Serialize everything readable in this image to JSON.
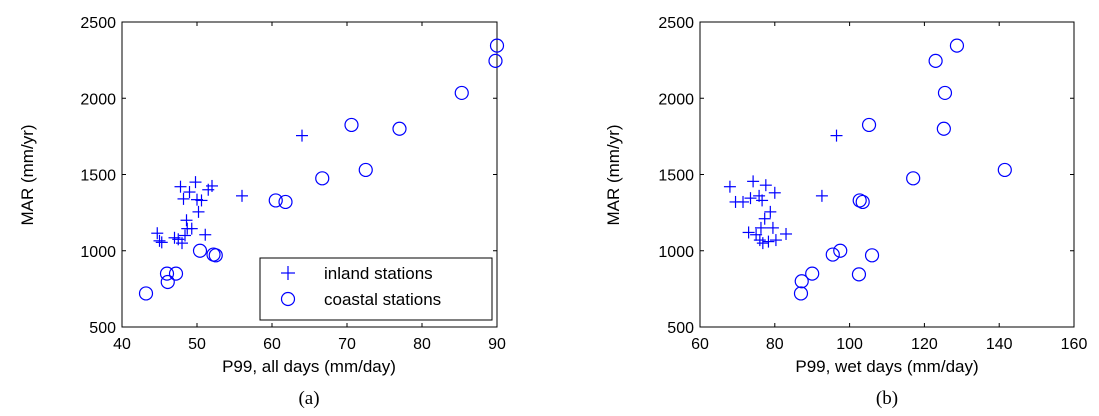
{
  "figure": {
    "marker_color": "#0000ff",
    "legend": {
      "inland": "inland stations",
      "coastal": "coastal stations"
    }
  },
  "chart_data": [
    {
      "type": "scatter",
      "caption": "(a)",
      "xlabel": "P99, all days (mm/day)",
      "ylabel": "MAR (mm/yr)",
      "xlim": [
        40,
        90
      ],
      "ylim": [
        500,
        2500
      ],
      "xticks": [
        "40",
        "50",
        "60",
        "70",
        "80",
        "90"
      ],
      "yticks": [
        "500",
        "1000",
        "1500",
        "2000",
        "2500"
      ],
      "legend_position": "bottom-right",
      "series": [
        {
          "name": "inland stations",
          "marker": "plus",
          "points": [
            [
              44.7,
              1115
            ],
            [
              45,
              1065
            ],
            [
              45.3,
              1055
            ],
            [
              47,
              1085
            ],
            [
              47.5,
              1075
            ],
            [
              47.8,
              1420
            ],
            [
              48,
              1050
            ],
            [
              48.2,
              1340
            ],
            [
              48.4,
              1100
            ],
            [
              48.6,
              1200
            ],
            [
              48.7,
              1145
            ],
            [
              49,
              1385
            ],
            [
              49.3,
              1145
            ],
            [
              49.8,
              1450
            ],
            [
              50,
              1335
            ],
            [
              50.2,
              1255
            ],
            [
              50.6,
              1330
            ],
            [
              51.1,
              1105
            ],
            [
              51.5,
              1400
            ],
            [
              52,
              1425
            ],
            [
              56,
              1360
            ],
            [
              64,
              1755
            ]
          ]
        },
        {
          "name": "coastal stations",
          "marker": "circle",
          "points": [
            [
              43.2,
              720
            ],
            [
              46,
              850
            ],
            [
              46.1,
              795
            ],
            [
              47.2,
              850
            ],
            [
              50.4,
              1000
            ],
            [
              52.2,
              975
            ],
            [
              52.5,
              970
            ],
            [
              60.5,
              1330
            ],
            [
              61.8,
              1320
            ],
            [
              66.7,
              1475
            ],
            [
              70.6,
              1825
            ],
            [
              72.5,
              1530
            ],
            [
              77,
              1800
            ],
            [
              85.3,
              2035
            ],
            [
              89.8,
              2245
            ],
            [
              90,
              2345
            ]
          ]
        }
      ]
    },
    {
      "type": "scatter",
      "caption": "(b)",
      "xlabel": "P99, wet days (mm/day)",
      "ylabel": "MAR (mm/yr)",
      "xlim": [
        60,
        160
      ],
      "ylim": [
        500,
        2500
      ],
      "xticks": [
        "60",
        "80",
        "100",
        "120",
        "140",
        "160"
      ],
      "yticks": [
        "500",
        "1000",
        "1500",
        "2000",
        "2500"
      ],
      "series": [
        {
          "name": "inland stations",
          "marker": "plus",
          "points": [
            [
              68,
              1420
            ],
            [
              69.5,
              1320
            ],
            [
              71.5,
              1320
            ],
            [
              73,
              1120
            ],
            [
              73.5,
              1345
            ],
            [
              74.2,
              1455
            ],
            [
              75,
              1105
            ],
            [
              75.8,
              1360
            ],
            [
              76,
              1070
            ],
            [
              76.3,
              1150
            ],
            [
              76.6,
              1330
            ],
            [
              76.8,
              1050
            ],
            [
              77.3,
              1210
            ],
            [
              77.6,
              1430
            ],
            [
              78.3,
              1060
            ],
            [
              78.8,
              1255
            ],
            [
              79.5,
              1150
            ],
            [
              80,
              1380
            ],
            [
              80.3,
              1070
            ],
            [
              83,
              1110
            ],
            [
              92.6,
              1360
            ],
            [
              96.5,
              1755
            ]
          ]
        },
        {
          "name": "coastal stations",
          "marker": "circle",
          "points": [
            [
              87,
              720
            ],
            [
              87.2,
              800
            ],
            [
              90,
              850
            ],
            [
              95.5,
              975
            ],
            [
              97.5,
              1000
            ],
            [
              102.5,
              845
            ],
            [
              102.7,
              1330
            ],
            [
              103.5,
              1320
            ],
            [
              106,
              970
            ],
            [
              105.2,
              1825
            ],
            [
              117,
              1475
            ],
            [
              123,
              2245
            ],
            [
              125.2,
              1800
            ],
            [
              125.5,
              2035
            ],
            [
              128.7,
              2345
            ],
            [
              141.5,
              1530
            ]
          ]
        }
      ]
    }
  ]
}
